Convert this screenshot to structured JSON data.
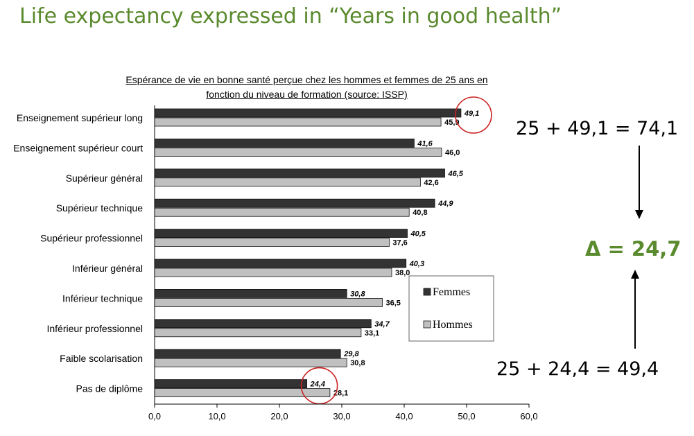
{
  "slide": {
    "title": "Life expectancy expressed in  “Years in good health”"
  },
  "chart_data": {
    "type": "bar",
    "orientation": "horizontal",
    "title": "Espérance de vie en bonne santé perçue chez les hommes et femmes de 25 ans en fonction du niveau de formation (source: ISSP)",
    "title_lines": [
      "Espérance de vie en bonne santé perçue chez les hommes et femmes de 25 ans en",
      "fonction du niveau de formation (source: ISSP)"
    ],
    "categories": [
      "Enseignement supérieur long",
      "Enseignement supérieur court",
      "Supérieur général",
      "Supérieur technique",
      "Supérieur professionnel",
      "Inférieur général",
      "Inférieur technique",
      "Inférieur professionnel",
      "Faible scolarisation",
      "Pas de diplôme"
    ],
    "series": [
      {
        "name": "Femmes",
        "color": "#333333",
        "values": [
          49.1,
          41.6,
          46.5,
          44.9,
          40.5,
          40.3,
          30.8,
          34.7,
          29.8,
          24.4
        ],
        "labels": [
          "49,1",
          "41,6",
          "46,5",
          "44,9",
          "40,5",
          "40,3",
          "30,8",
          "34,7",
          "29,8",
          "24,4"
        ]
      },
      {
        "name": "Hommes",
        "color": "#c0c0c0",
        "values": [
          45.9,
          46.0,
          42.6,
          40.8,
          37.6,
          38.0,
          36.5,
          33.1,
          30.8,
          28.1
        ],
        "labels": [
          "45,9",
          "46,0",
          "42,6",
          "40,8",
          "37,6",
          "38,0",
          "36,5",
          "33,1",
          "30,8",
          "28,1"
        ]
      }
    ],
    "xlim": [
      0,
      60
    ],
    "xticks": [
      0,
      10,
      20,
      30,
      40,
      50,
      60
    ],
    "xtick_labels": [
      "0,0",
      "10,0",
      "20,0",
      "30,0",
      "40,0",
      "50,0",
      "60,0"
    ],
    "grid": false,
    "legend_position": "inside-right",
    "highlight_circles": [
      {
        "category": "Enseignement supérieur long",
        "series": "Femmes",
        "color": "#cc2222"
      },
      {
        "category": "Pas de diplôme",
        "series": "Femmes",
        "color": "#cc2222"
      }
    ]
  },
  "annotations": {
    "equation_top": "25 + 49,1 = 74,1",
    "equation_bottom": "25 + 24,4 = 49,4",
    "delta": "Δ = 24,7"
  }
}
